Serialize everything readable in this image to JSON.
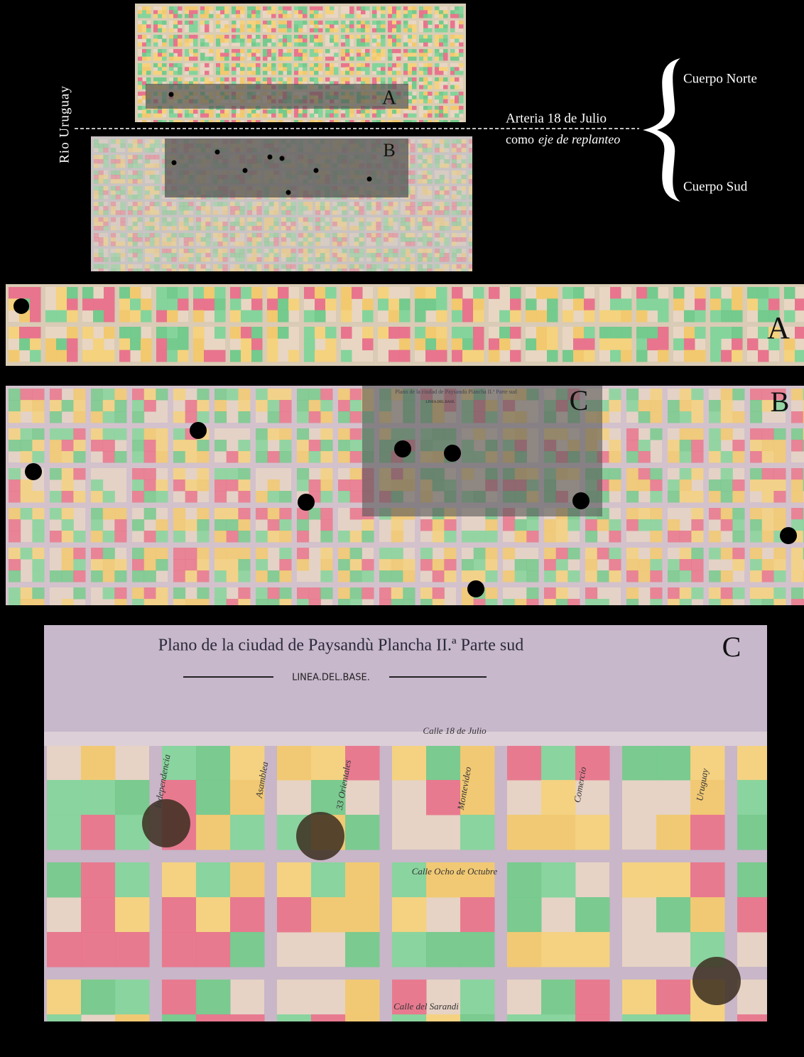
{
  "overview": {
    "river_label": "Rio Uruguay",
    "axis_line": "Arteria 18 de Julio",
    "axis_como": "como",
    "axis_italic": "eje de replanteo",
    "north_body": "Cuerpo Norte",
    "south_body": "Cuerpo Sud",
    "north_letter": "A",
    "south_letter": "B"
  },
  "strip_a": {
    "letter": "A"
  },
  "strip_b": {
    "letter": "B",
    "inset_letter": "C",
    "inset_title": "Plano de la ciudad de Paysandù Plancha II.ª Parte sud",
    "inset_base": "LINEA.DEL.BASE."
  },
  "detail_c": {
    "letter": "C",
    "title": "Plano de la ciudad de Paysandù Plancha II.ª Parte sud",
    "base_line": "LINEA.DEL.BASE.",
    "streets": [
      "Calle 18 de Julio",
      "Calle Ocho de Octubre",
      "Calle del Sarandi",
      "Independencia",
      "Asamblea",
      "33 Orientales",
      "Montevideo",
      "Comercio",
      "Uruguay"
    ]
  }
}
